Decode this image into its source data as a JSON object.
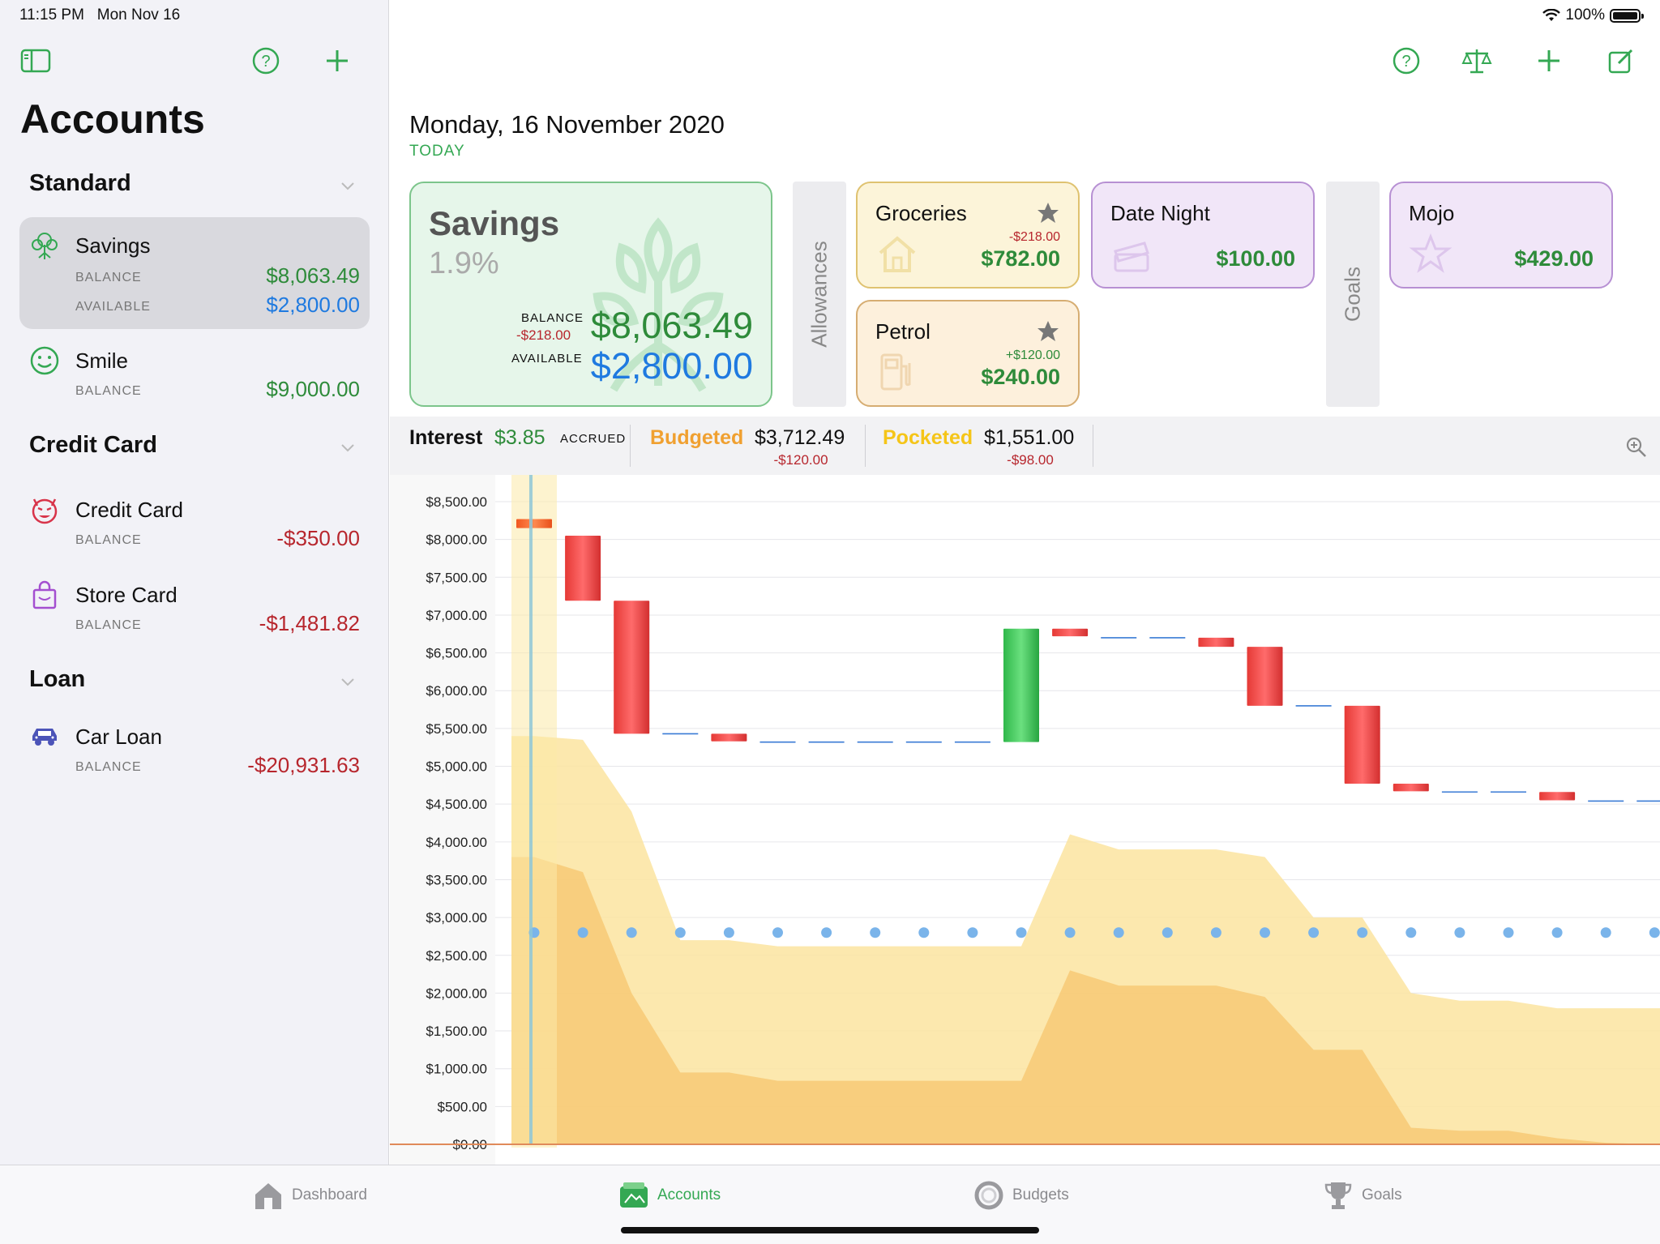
{
  "status": {
    "time": "11:15 PM",
    "date": "Mon Nov 16",
    "battery": "100%"
  },
  "sidebar": {
    "title": "Accounts",
    "sections": [
      {
        "label": "Standard"
      },
      {
        "label": "Credit Card"
      },
      {
        "label": "Loan"
      }
    ],
    "accounts": [
      {
        "name": "Savings",
        "balance_label": "BALANCE",
        "balance": "$8,063.49",
        "available_label": "AVAILABLE",
        "available": "$2,800.00"
      },
      {
        "name": "Smile",
        "balance_label": "BALANCE",
        "balance": "$9,000.00"
      },
      {
        "name": "Credit Card",
        "balance_label": "BALANCE",
        "balance": "-$350.00"
      },
      {
        "name": "Store Card",
        "balance_label": "BALANCE",
        "balance": "-$1,481.82"
      },
      {
        "name": "Car Loan",
        "balance_label": "BALANCE",
        "balance": "-$20,931.63"
      }
    ]
  },
  "main": {
    "date": "Monday, 16 November 2020",
    "today_label": "TODAY",
    "savings_card": {
      "title": "Savings",
      "rate": "1.9%",
      "balance_label": "BALANCE",
      "balance_change": "-$218.00",
      "balance": "$8,063.49",
      "available_label": "AVAILABLE",
      "available": "$2,800.00"
    },
    "allowances_label": "Allowances",
    "goals_label": "Goals",
    "allowances": [
      {
        "name": "Groceries",
        "change": "-$218.00",
        "amount": "$782.00"
      },
      {
        "name": "Date Night",
        "amount": "$100.00"
      },
      {
        "name": "Petrol",
        "change": "+$120.00",
        "amount": "$240.00"
      }
    ],
    "goals": [
      {
        "name": "Mojo",
        "amount": "$429.00"
      }
    ],
    "metrics": {
      "interest_label": "Interest",
      "interest_value": "$3.85",
      "interest_note": "ACCRUED",
      "budgeted_label": "Budgeted",
      "budgeted_value": "$3,712.49",
      "budgeted_change": "-$120.00",
      "pocketed_label": "Pocketed",
      "pocketed_value": "$1,551.00",
      "pocketed_change": "-$98.00"
    }
  },
  "chart_data": {
    "type": "bar",
    "ylim": [
      0,
      8500
    ],
    "y_ticks": [
      "$8,500.00",
      "$8,000.00",
      "$7,500.00",
      "$7,000.00",
      "$6,500.00",
      "$6,000.00",
      "$5,500.00",
      "$5,000.00",
      "$4,500.00",
      "$4,000.00",
      "$3,500.00",
      "$3,000.00",
      "$2,500.00",
      "$2,000.00",
      "$1,500.00",
      "$1,000.00",
      "$500.00",
      "$0.00"
    ],
    "waterfall": [
      [
        8150,
        8270
      ],
      [
        7190,
        8050
      ],
      [
        5430,
        7190
      ],
      [
        5430,
        5430
      ],
      [
        5330,
        5430
      ],
      [
        5320,
        5320
      ],
      [
        5320,
        5320
      ],
      [
        5320,
        5320
      ],
      [
        5320,
        5320
      ],
      [
        5320,
        5320
      ],
      [
        5320,
        6820
      ],
      [
        6720,
        6820
      ],
      [
        6700,
        6700
      ],
      [
        6700,
        6700
      ],
      [
        6580,
        6700
      ],
      [
        5800,
        6580
      ],
      [
        5800,
        5800
      ],
      [
        4770,
        5800
      ],
      [
        4670,
        4770
      ],
      [
        4660,
        4660
      ],
      [
        4660,
        4660
      ],
      [
        4550,
        4660
      ],
      [
        4540,
        4540
      ],
      [
        4540,
        4540
      ]
    ],
    "available_line": [
      2800,
      2800,
      2800,
      2800,
      2800,
      2800,
      2800,
      2800,
      2800,
      2800,
      2800,
      2800,
      2800,
      2800,
      2800,
      2800,
      2800,
      2800,
      2800,
      2800,
      2800,
      2800,
      2800,
      2800
    ],
    "budgeted_area": [
      5400,
      5350,
      4400,
      2700,
      2700,
      2620,
      2620,
      2620,
      2620,
      2620,
      2620,
      4100,
      3900,
      3900,
      3900,
      3800,
      3000,
      3000,
      2000,
      1900,
      1900,
      1800,
      1800,
      1800
    ],
    "pocketed_area": [
      3800,
      3600,
      2000,
      950,
      950,
      840,
      840,
      840,
      840,
      840,
      840,
      2300,
      2100,
      2100,
      2100,
      1950,
      1250,
      1250,
      220,
      180,
      180,
      80,
      20,
      0
    ]
  },
  "tabs": [
    {
      "label": "Dashboard"
    },
    {
      "label": "Accounts"
    },
    {
      "label": "Budgets"
    },
    {
      "label": "Goals"
    }
  ],
  "colors": {
    "accent": "#34a853",
    "negative": "#b7262d",
    "available": "#1f7ae0",
    "budgeted": "#f0a030",
    "pocketed": "#f5c518"
  }
}
